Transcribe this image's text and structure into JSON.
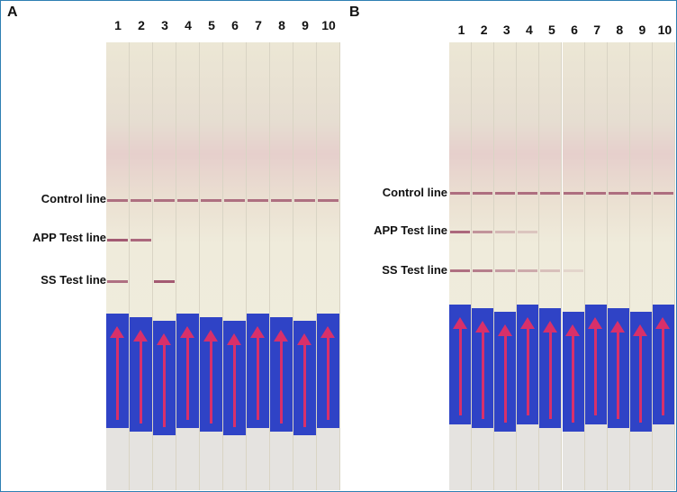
{
  "panels": [
    {
      "letter": "A",
      "lane_numbers": [
        "1",
        "2",
        "3",
        "4",
        "5",
        "6",
        "7",
        "8",
        "9",
        "10"
      ],
      "labels": {
        "control": "Control line",
        "app": "APP Test line",
        "ss": "SS Test line"
      },
      "app_band_lanes": [
        1,
        2
      ],
      "ss_band_lanes": [
        1,
        3
      ],
      "app_band_intensity": [
        1,
        0.9,
        0,
        0,
        0,
        0,
        0,
        0,
        0,
        0
      ],
      "ss_band_intensity": [
        0.85,
        0,
        1,
        0,
        0,
        0,
        0,
        0,
        0,
        0
      ]
    },
    {
      "letter": "B",
      "lane_numbers": [
        "1",
        "2",
        "3",
        "4",
        "5",
        "6",
        "7",
        "8",
        "9",
        "10"
      ],
      "labels": {
        "control": "Control line",
        "app": "APP Test line",
        "ss": "SS Test line"
      },
      "app_band_intensity": [
        0.9,
        0.6,
        0.35,
        0.25,
        0,
        0,
        0,
        0,
        0,
        0
      ],
      "ss_band_intensity": [
        0.85,
        0.75,
        0.55,
        0.45,
        0.3,
        0.15,
        0,
        0,
        0,
        0
      ]
    }
  ],
  "colors": {
    "pad": "#2f43c6",
    "arrow": "#d8306a",
    "band": "#a35a72",
    "border": "#2f7fb3"
  }
}
